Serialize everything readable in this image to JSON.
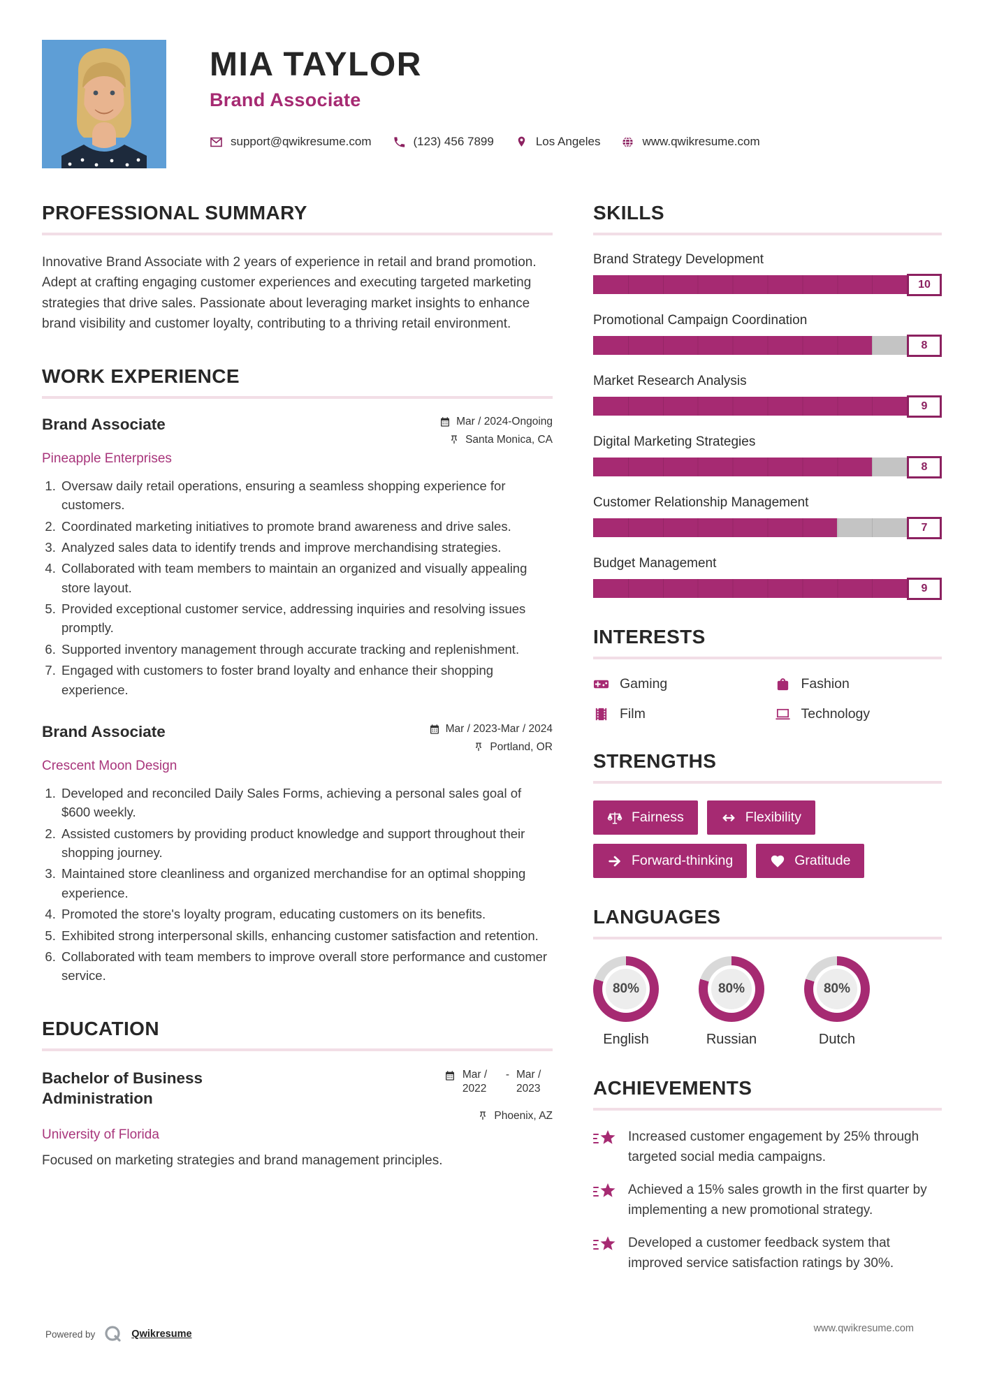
{
  "colors": {
    "accent": "#a62a72",
    "accent_dark": "#8c2160",
    "donut_rest": "#d9d9d9"
  },
  "header": {
    "name": "MIA TAYLOR",
    "title": "Brand Associate",
    "contacts": [
      {
        "icon": "email-icon",
        "text": "support@qwikresume.com"
      },
      {
        "icon": "phone-icon",
        "text": "(123) 456 7899"
      },
      {
        "icon": "location-pin-icon",
        "text": "Los Angeles"
      },
      {
        "icon": "globe-icon",
        "text": "www.qwikresume.com"
      }
    ]
  },
  "summary": {
    "heading": "PROFESSIONAL SUMMARY",
    "text": "Innovative Brand Associate with 2 years of experience in retail and brand promotion. Adept at crafting engaging customer experiences and executing targeted marketing strategies that drive sales. Passionate about leveraging market insights to enhance brand visibility and customer loyalty, contributing to a thriving retail environment."
  },
  "work": {
    "heading": "WORK EXPERIENCE",
    "jobs": [
      {
        "title": "Brand Associate",
        "company": "Pineapple Enterprises",
        "date": "Mar / 2024-Ongoing",
        "location": "Santa Monica, CA",
        "bullets": [
          "Oversaw daily retail operations, ensuring a seamless shopping experience for customers.",
          "Coordinated marketing initiatives to promote brand awareness and drive sales.",
          "Analyzed sales data to identify trends and improve merchandising strategies.",
          "Collaborated with team members to maintain an organized and visually appealing store layout.",
          "Provided exceptional customer service, addressing inquiries and resolving issues promptly.",
          "Supported inventory management through accurate tracking and replenishment.",
          "Engaged with customers to foster brand loyalty and enhance their shopping experience."
        ]
      },
      {
        "title": "Brand Associate",
        "company": "Crescent Moon Design",
        "date": "Mar / 2023-Mar / 2024",
        "location": "Portland, OR",
        "bullets": [
          "Developed and reconciled Daily Sales Forms, achieving a personal sales goal of $600 weekly.",
          "Assisted customers by providing product knowledge and support throughout their shopping journey.",
          "Maintained store cleanliness and organized merchandise for an optimal shopping experience.",
          "Promoted the store's loyalty program, educating customers on its benefits.",
          "Exhibited strong interpersonal skills, enhancing customer satisfaction and retention.",
          "Collaborated with team members to improve overall store performance and customer service."
        ]
      }
    ]
  },
  "education": {
    "heading": "EDUCATION",
    "degree": "Bachelor of Business Administration",
    "school": "University of Florida",
    "date_from": "Mar / 2022",
    "date_sep": "-",
    "date_to": "Mar / 2023",
    "location": "Phoenix, AZ",
    "description": "Focused on marketing strategies and brand management principles."
  },
  "skills": {
    "heading": "SKILLS",
    "items": [
      {
        "name": "Brand Strategy Development",
        "level": 10
      },
      {
        "name": "Promotional Campaign Coordination",
        "level": 8
      },
      {
        "name": "Market Research Analysis",
        "level": 9
      },
      {
        "name": "Digital Marketing Strategies",
        "level": 8
      },
      {
        "name": "Customer Relationship Management",
        "level": 7
      },
      {
        "name": "Budget Management",
        "level": 9
      }
    ]
  },
  "interests": {
    "heading": "INTERESTS",
    "items": [
      {
        "icon": "gamepad-icon",
        "label": "Gaming"
      },
      {
        "icon": "fashion-bag-icon",
        "label": "Fashion"
      },
      {
        "icon": "film-icon",
        "label": "Film"
      },
      {
        "icon": "laptop-icon",
        "label": "Technology"
      }
    ]
  },
  "strengths": {
    "heading": "STRENGTHS",
    "items": [
      {
        "icon": "scales-icon",
        "label": "Fairness"
      },
      {
        "icon": "left-right-arrow-icon",
        "label": "Flexibility"
      },
      {
        "icon": "right-arrow-icon",
        "label": "Forward-thinking"
      },
      {
        "icon": "heart-icon",
        "label": "Gratitude"
      }
    ]
  },
  "languages": {
    "heading": "LANGUAGES",
    "items": [
      {
        "name": "English",
        "percent": 80,
        "percent_label": "80%"
      },
      {
        "name": "Russian",
        "percent": 80,
        "percent_label": "80%"
      },
      {
        "name": "Dutch",
        "percent": 80,
        "percent_label": "80%"
      }
    ]
  },
  "achievements": {
    "heading": "ACHIEVEMENTS",
    "items": [
      "Increased customer engagement by 25% through targeted social media campaigns.",
      "Achieved a 15% sales growth in the first quarter by implementing a new promotional strategy.",
      "Developed a customer feedback system that improved service satisfaction ratings by 30%."
    ]
  },
  "footer": {
    "powered_by": "Powered by",
    "brand": "Qwikresume",
    "watermark": "www.qwikresume.com"
  }
}
